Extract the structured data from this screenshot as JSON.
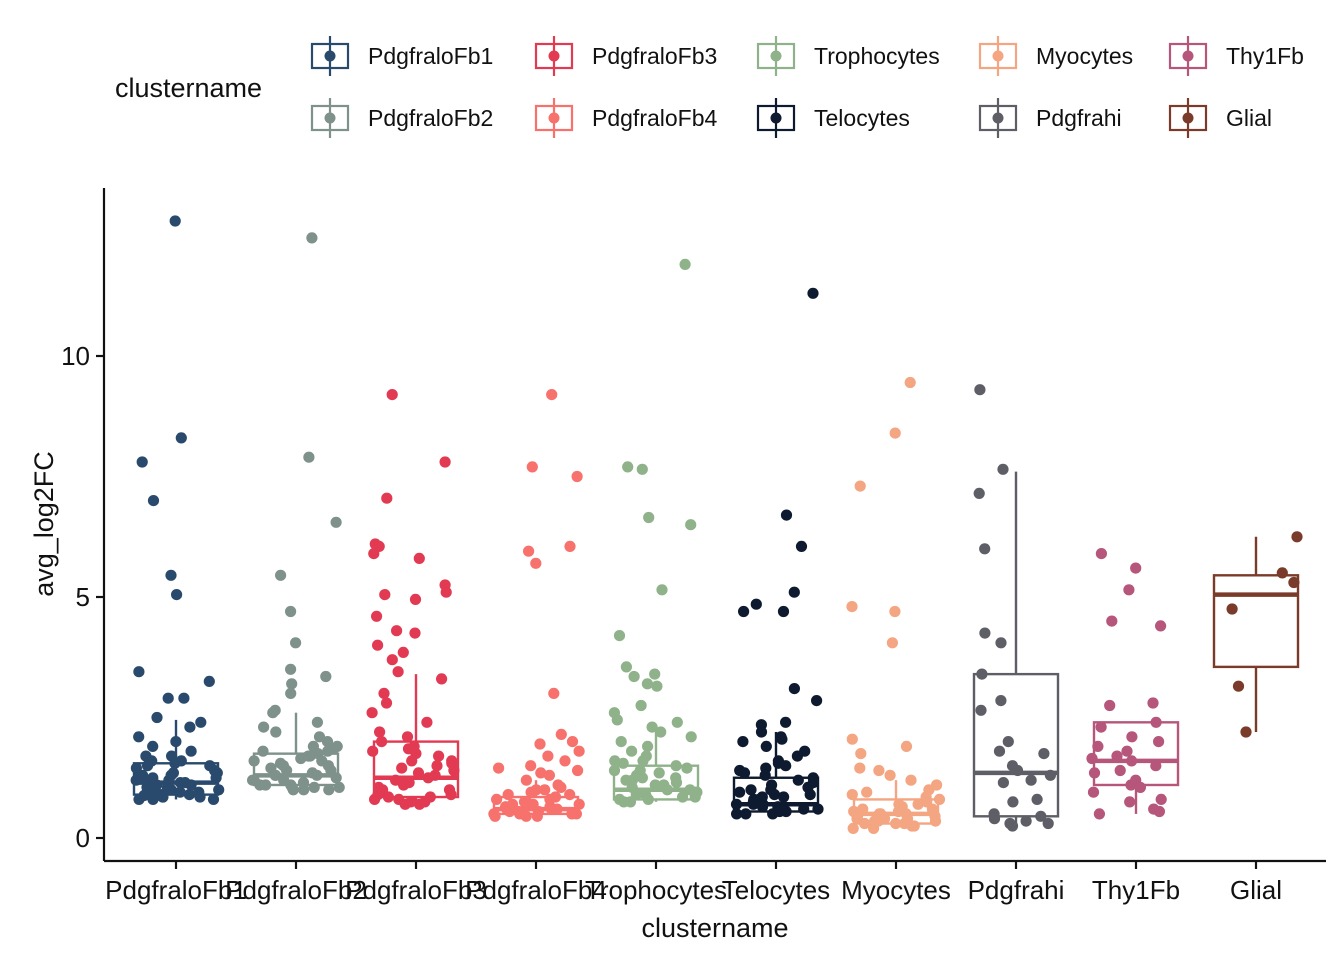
{
  "chart_data": {
    "type": "box",
    "title": "",
    "xlabel": "clustername",
    "ylabel": "avg_log2FC",
    "ylim": [
      -0.5,
      13.5
    ],
    "y_ticks": [
      0,
      5,
      10
    ],
    "grid": false,
    "legend": {
      "title": "clustername",
      "placement": "top",
      "items": [
        "PdgfraloFb1",
        "PdgfraloFb3",
        "Trophocytes",
        "Myocytes",
        "Thy1Fb",
        "PdgfraloFb2",
        "PdgfraloFb4",
        "Telocytes",
        "Pdgfrahi",
        "Glial"
      ]
    },
    "categories": [
      "PdgfraloFb1",
      "PdgfraloFb2",
      "PdgfraloFb3",
      "PdgfraloFb4",
      "Trophocytes",
      "Telocytes",
      "Myocytes",
      "Pdgfrahi",
      "Thy1Fb",
      "Glial"
    ],
    "series": [
      {
        "name": "PdgfraloFb1",
        "color": "#2a4a6d",
        "box": {
          "min": 0.8,
          "q1": 0.9,
          "median": 1.15,
          "q3": 1.55,
          "max": 2.45
        },
        "points": [
          12.8,
          8.3,
          7.8,
          7.0,
          5.45,
          5.05,
          3.45,
          3.25,
          2.9,
          2.9,
          2.5,
          2.4,
          2.3,
          2.1,
          2.0,
          1.9,
          1.8,
          1.7,
          1.6,
          1.55,
          1.5,
          1.45,
          1.4,
          1.35,
          1.3,
          1.3,
          1.25,
          1.2,
          1.2,
          1.15,
          1.1,
          1.1,
          1.05,
          1.0,
          1.0,
          0.95,
          0.95,
          0.9,
          0.9,
          0.85,
          0.85,
          0.85,
          0.8,
          0.8,
          0.8,
          1.5,
          1.35,
          1.25,
          1.15,
          1.05,
          0.95,
          0.9,
          0.88,
          1.6,
          1.7,
          1.3,
          1.2,
          1.0
        ]
      },
      {
        "name": "PdgfraloFb2",
        "color": "#7e918b",
        "box": {
          "min": 1.0,
          "q1": 1.1,
          "median": 1.3,
          "q3": 1.75,
          "max": 2.6
        },
        "points": [
          12.45,
          7.9,
          6.55,
          5.45,
          4.7,
          4.05,
          3.5,
          3.35,
          3.2,
          3.0,
          2.65,
          2.6,
          2.4,
          2.3,
          2.2,
          2.1,
          2.0,
          1.9,
          1.85,
          1.8,
          1.75,
          1.7,
          1.65,
          1.6,
          1.55,
          1.5,
          1.45,
          1.4,
          1.35,
          1.3,
          1.3,
          1.25,
          1.2,
          1.2,
          1.15,
          1.1,
          1.1,
          1.05,
          1.05,
          1.0,
          1.0,
          1.0,
          1.8,
          1.6,
          1.4,
          1.3,
          1.2,
          1.1,
          1.05,
          1.9,
          1.7,
          1.5
        ]
      },
      {
        "name": "PdgfraloFb3",
        "color": "#e23a52",
        "box": {
          "min": 0.7,
          "q1": 0.85,
          "median": 1.25,
          "q3": 2.0,
          "max": 3.4
        },
        "points": [
          9.2,
          7.8,
          7.05,
          6.1,
          6.05,
          5.9,
          5.8,
          5.25,
          5.1,
          5.05,
          4.95,
          4.6,
          4.3,
          4.25,
          4.0,
          3.85,
          3.7,
          3.45,
          3.3,
          3.0,
          2.8,
          2.6,
          2.4,
          2.2,
          2.1,
          2.0,
          1.9,
          1.85,
          1.8,
          1.7,
          1.6,
          1.5,
          1.45,
          1.4,
          1.3,
          1.25,
          1.2,
          1.1,
          1.05,
          1.0,
          0.95,
          0.9,
          0.85,
          0.8,
          0.8,
          0.75,
          0.75,
          0.7,
          0.7,
          1.6,
          1.35,
          1.15,
          1.0,
          0.9,
          0.85,
          1.75,
          1.55
        ]
      },
      {
        "name": "PdgfraloFb4",
        "color": "#f7716d",
        "box": {
          "min": 0.45,
          "q1": 0.5,
          "median": 0.6,
          "q3": 0.85,
          "max": 1.2
        },
        "points": [
          9.2,
          7.7,
          7.5,
          6.05,
          5.95,
          5.7,
          3.0,
          2.15,
          2.0,
          1.95,
          1.8,
          1.7,
          1.6,
          1.5,
          1.45,
          1.4,
          1.35,
          1.3,
          1.2,
          1.1,
          1.05,
          1.0,
          0.95,
          0.9,
          0.85,
          0.8,
          0.75,
          0.7,
          0.7,
          0.65,
          0.65,
          0.6,
          0.6,
          0.55,
          0.55,
          0.5,
          0.5,
          0.5,
          0.45,
          0.45,
          0.45,
          0.9,
          0.8,
          0.7,
          0.6,
          0.55,
          0.5,
          1.0,
          0.75
        ]
      },
      {
        "name": "Trophocytes",
        "color": "#8fb28a",
        "box": {
          "min": 0.75,
          "q1": 0.8,
          "median": 1.0,
          "q3": 1.5,
          "max": 2.3
        },
        "points": [
          11.9,
          7.7,
          7.65,
          6.65,
          6.5,
          5.15,
          4.2,
          3.55,
          3.4,
          3.35,
          3.2,
          3.15,
          2.75,
          2.6,
          2.45,
          2.4,
          2.3,
          2.2,
          2.1,
          2.0,
          1.9,
          1.8,
          1.7,
          1.6,
          1.55,
          1.5,
          1.45,
          1.4,
          1.35,
          1.3,
          1.25,
          1.2,
          1.15,
          1.1,
          1.05,
          1.0,
          1.0,
          0.95,
          0.9,
          0.85,
          0.85,
          0.8,
          0.8,
          0.75,
          0.75,
          1.25,
          1.1,
          0.95,
          0.9,
          1.6,
          1.4,
          1.2
        ]
      },
      {
        "name": "Telocytes",
        "color": "#0d1a30",
        "box": {
          "min": 0.5,
          "q1": 0.55,
          "median": 0.7,
          "q3": 1.25,
          "max": 2.2
        },
        "points": [
          11.3,
          6.7,
          6.05,
          5.1,
          4.85,
          4.7,
          4.7,
          3.1,
          2.85,
          2.4,
          2.35,
          2.2,
          2.1,
          2.05,
          2.0,
          1.9,
          1.8,
          1.7,
          1.6,
          1.55,
          1.5,
          1.45,
          1.4,
          1.35,
          1.3,
          1.25,
          1.2,
          1.15,
          1.1,
          1.05,
          1.0,
          0.95,
          0.9,
          0.85,
          0.8,
          0.75,
          0.7,
          0.7,
          0.65,
          0.6,
          0.6,
          0.55,
          0.55,
          0.5,
          0.5,
          0.5,
          0.9,
          0.8,
          0.7,
          0.65,
          0.6,
          1.0,
          0.85
        ]
      },
      {
        "name": "Myocytes",
        "color": "#f4a582",
        "box": {
          "min": 0.2,
          "q1": 0.3,
          "median": 0.5,
          "q3": 0.8,
          "max": 1.2
        },
        "points": [
          9.45,
          8.4,
          7.3,
          4.8,
          4.7,
          4.05,
          2.05,
          1.9,
          1.75,
          1.45,
          1.4,
          1.3,
          1.2,
          1.1,
          1.0,
          0.95,
          0.9,
          0.85,
          0.8,
          0.75,
          0.7,
          0.65,
          0.6,
          0.55,
          0.5,
          0.5,
          0.45,
          0.4,
          0.4,
          0.35,
          0.35,
          0.3,
          0.3,
          0.25,
          0.25,
          0.2,
          0.2,
          0.6,
          0.5,
          0.4,
          0.35,
          0.3,
          0.7,
          0.55,
          0.45
        ]
      },
      {
        "name": "Pdgfrahi",
        "color": "#5e5e66",
        "box": {
          "min": 0.3,
          "q1": 0.45,
          "median": 1.35,
          "q3": 3.4,
          "max": 7.6
        },
        "points": [
          9.3,
          7.65,
          7.15,
          6.0,
          4.25,
          4.05,
          3.4,
          2.85,
          2.65,
          2.0,
          1.8,
          1.75,
          1.5,
          1.4,
          1.3,
          1.2,
          1.15,
          0.8,
          0.75,
          0.5,
          0.45,
          0.4,
          0.35,
          0.3,
          0.25,
          0.3
        ]
      },
      {
        "name": "Thy1Fb",
        "color": "#b5567a",
        "box": {
          "min": 0.5,
          "q1": 1.1,
          "median": 1.6,
          "q3": 2.4,
          "max": 2.4
        },
        "points": [
          5.9,
          5.6,
          5.15,
          4.5,
          4.4,
          2.8,
          2.75,
          2.4,
          2.3,
          2.1,
          2.0,
          1.9,
          1.8,
          1.7,
          1.65,
          1.6,
          1.5,
          1.4,
          1.35,
          1.2,
          1.1,
          1.05,
          0.95,
          0.8,
          0.75,
          0.6,
          0.55,
          0.5
        ]
      },
      {
        "name": "Glial",
        "color": "#7b3b2a",
        "box": {
          "min": 2.2,
          "q1": 3.55,
          "median": 5.05,
          "q3": 5.45,
          "max": 6.25
        },
        "points": [
          6.25,
          5.5,
          5.3,
          4.75,
          3.15,
          2.2
        ]
      }
    ]
  }
}
